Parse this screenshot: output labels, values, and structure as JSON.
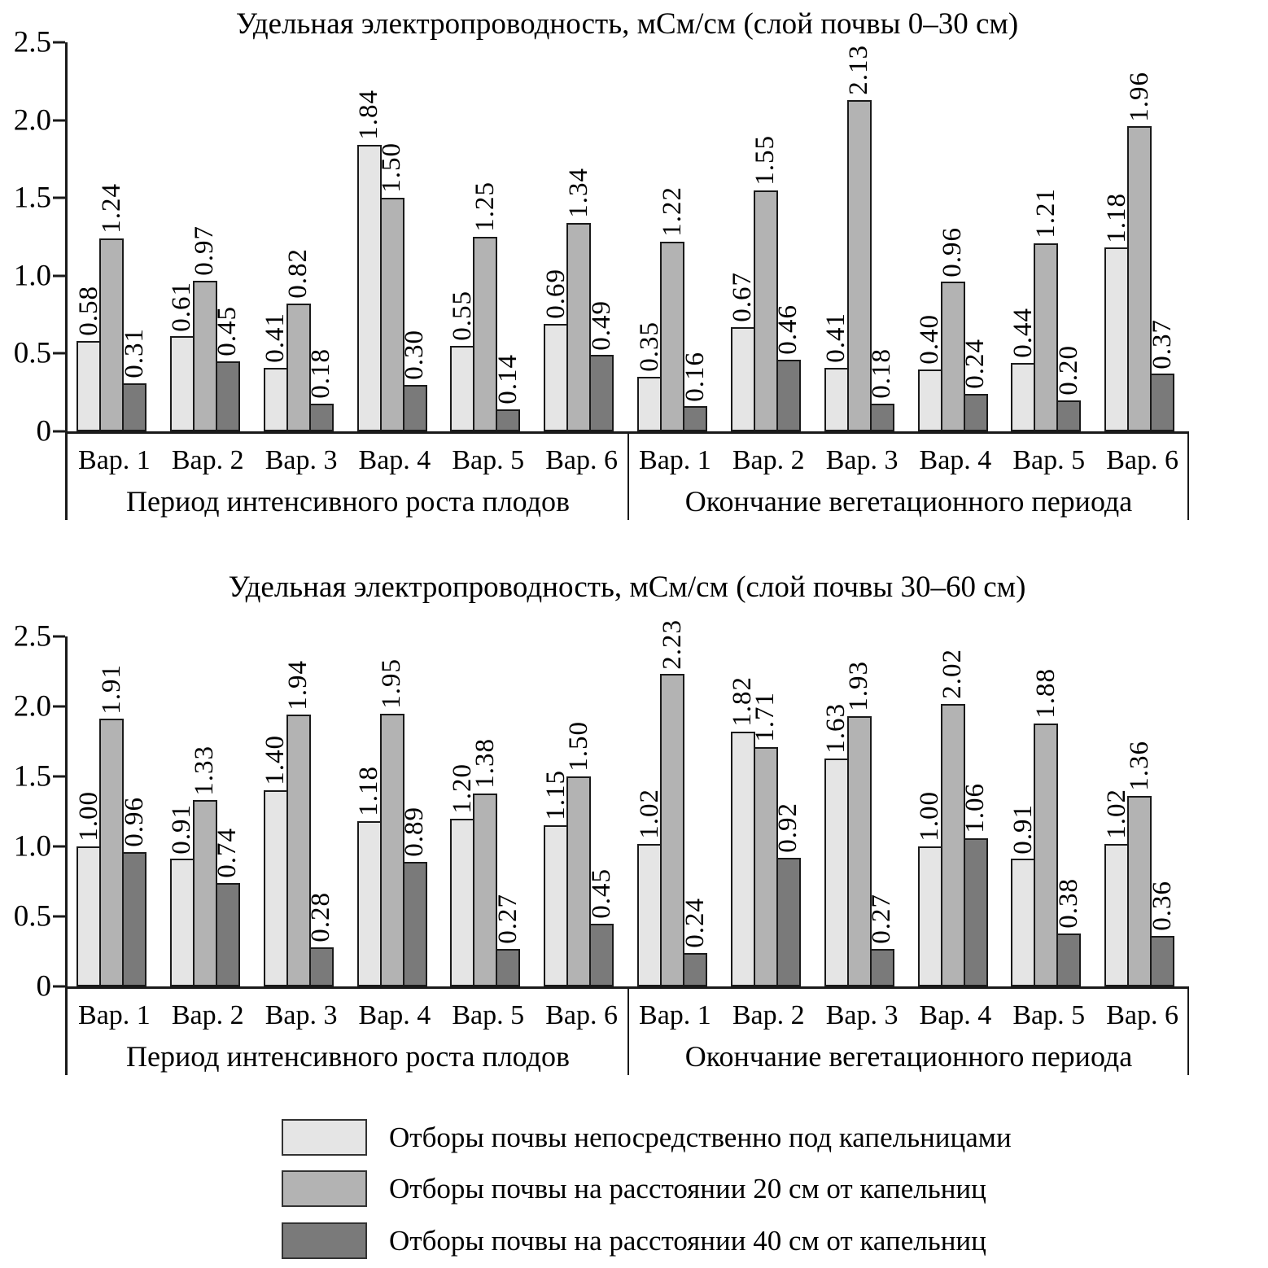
{
  "chart_data": {
    "type": "bar",
    "ylim": [
      0,
      2.5
    ],
    "yticks": [
      "0",
      "0.5",
      "1.0",
      "1.5",
      "2.0",
      "2.5"
    ],
    "grid": false,
    "legend_position": "bottom",
    "charts": [
      {
        "title": "Удельная электропроводность, мСм/см (слой почвы 0–30 см)",
        "panels": [
          {
            "label": "Период интенсивного роста плодов",
            "categories": [
              "Вар. 1",
              "Вар. 2",
              "Вар. 3",
              "Вар. 4",
              "Вар. 5",
              "Вар. 6"
            ],
            "values": [
              [
                0.58,
                1.24,
                0.31
              ],
              [
                0.61,
                0.97,
                0.45
              ],
              [
                0.41,
                0.82,
                0.18
              ],
              [
                1.84,
                1.5,
                0.3
              ],
              [
                0.55,
                1.25,
                0.14
              ],
              [
                0.69,
                1.34,
                0.49
              ]
            ]
          },
          {
            "label": "Окончание вегетационного периода",
            "categories": [
              "Вар. 1",
              "Вар. 2",
              "Вар. 3",
              "Вар. 4",
              "Вар. 5",
              "Вар. 6"
            ],
            "values": [
              [
                0.35,
                1.22,
                0.16
              ],
              [
                0.67,
                1.55,
                0.46
              ],
              [
                0.41,
                2.13,
                0.18
              ],
              [
                0.4,
                0.96,
                0.24
              ],
              [
                0.44,
                1.21,
                0.2
              ],
              [
                1.18,
                1.96,
                0.37
              ]
            ]
          }
        ]
      },
      {
        "title": "Удельная электропроводность, мСм/см (слой почвы 30–60 см)",
        "panels": [
          {
            "label": "Период интенсивного роста плодов",
            "categories": [
              "Вар. 1",
              "Вар. 2",
              "Вар. 3",
              "Вар. 4",
              "Вар. 5",
              "Вар. 6"
            ],
            "values": [
              [
                1.0,
                1.91,
                0.96
              ],
              [
                0.91,
                1.33,
                0.74
              ],
              [
                1.4,
                1.94,
                0.28
              ],
              [
                1.18,
                1.95,
                0.89
              ],
              [
                1.2,
                1.38,
                0.27
              ],
              [
                1.15,
                1.5,
                0.45
              ]
            ]
          },
          {
            "label": "Окончание вегетационного периода",
            "categories": [
              "Вар. 1",
              "Вар. 2",
              "Вар. 3",
              "Вар. 4",
              "Вар. 5",
              "Вар. 6"
            ],
            "values": [
              [
                1.02,
                2.23,
                0.24
              ],
              [
                1.82,
                1.71,
                0.92
              ],
              [
                1.63,
                1.93,
                0.27
              ],
              [
                1.0,
                2.02,
                1.06
              ],
              [
                0.91,
                1.88,
                0.38
              ],
              [
                1.02,
                1.36,
                0.36
              ]
            ]
          }
        ]
      }
    ],
    "legend": [
      {
        "label": "Отборы почвы непосредственно под капельницами",
        "color": "#e5e5e5"
      },
      {
        "label": "Отборы почвы на расстоянии 20 см от капельниц",
        "color": "#b3b3b3"
      },
      {
        "label": "Отборы почвы на расстоянии 40 см от капельниц",
        "color": "#7a7a7a"
      }
    ],
    "value_label_decimals": 2
  }
}
